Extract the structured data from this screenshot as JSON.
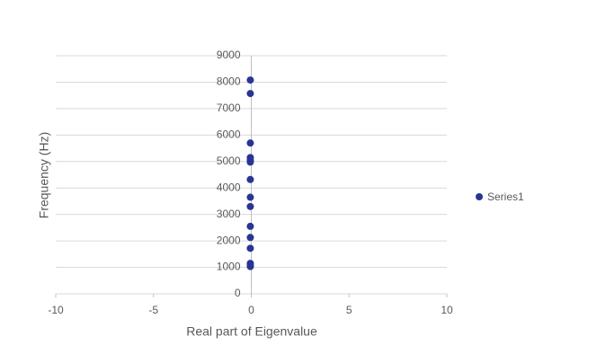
{
  "chart_data": {
    "type": "scatter",
    "xlabel": "Real part of Eigenvalue",
    "ylabel": "Frequency (Hz)",
    "series": [
      {
        "name": "Series1",
        "color": "#283593",
        "x": [
          -0.05,
          -0.05,
          -0.05,
          -0.05,
          -0.05,
          -0.05,
          -0.05,
          -0.05,
          -0.05,
          -0.05,
          -0.05,
          -0.05,
          -0.05,
          -0.05,
          -0.05
        ],
        "values": [
          8080,
          7570,
          5700,
          5150,
          5050,
          4980,
          4320,
          3650,
          3300,
          2550,
          2130,
          1720,
          1150,
          1080,
          1030
        ]
      }
    ],
    "xlim": [
      -10,
      10
    ],
    "xticks": [
      -10,
      -5,
      0,
      5,
      10
    ],
    "ylim": [
      0,
      9000
    ],
    "yticks": [
      0,
      1000,
      2000,
      3000,
      4000,
      5000,
      6000,
      7000,
      8000,
      9000
    ],
    "grid": true,
    "legend": "right"
  }
}
